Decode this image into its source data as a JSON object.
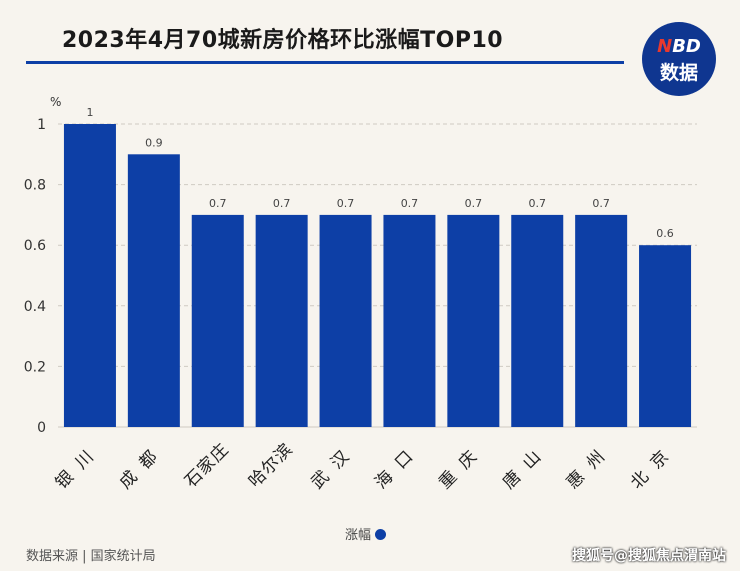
{
  "header": {
    "title": "2023年4月70城新房价格环比涨幅TOP10",
    "logo_top": "NBD",
    "logo_bottom": "数据"
  },
  "footer": {
    "source": "数据来源 | 国家统计局",
    "site_watermark": "搜狐号@搜狐焦点渭南站"
  },
  "colors": {
    "bar": "#0d3fa6",
    "grid": "#cfcac2",
    "accent_red": "#e8392d"
  },
  "chart_data": {
    "type": "bar",
    "categories": [
      "银川",
      "成都",
      "石家庄",
      "哈尔滨",
      "武汉",
      "海口",
      "重庆",
      "唐山",
      "惠州",
      "北京"
    ],
    "series": [
      {
        "name": "涨幅",
        "values": [
          1,
          0.9,
          0.7,
          0.7,
          0.7,
          0.7,
          0.7,
          0.7,
          0.7,
          0.6
        ]
      }
    ],
    "ylabel": "%",
    "ylim": [
      0,
      1
    ],
    "yticks": [
      0,
      0.2,
      0.4,
      0.6,
      0.8,
      1
    ],
    "grid": true,
    "legend": "bottom"
  }
}
